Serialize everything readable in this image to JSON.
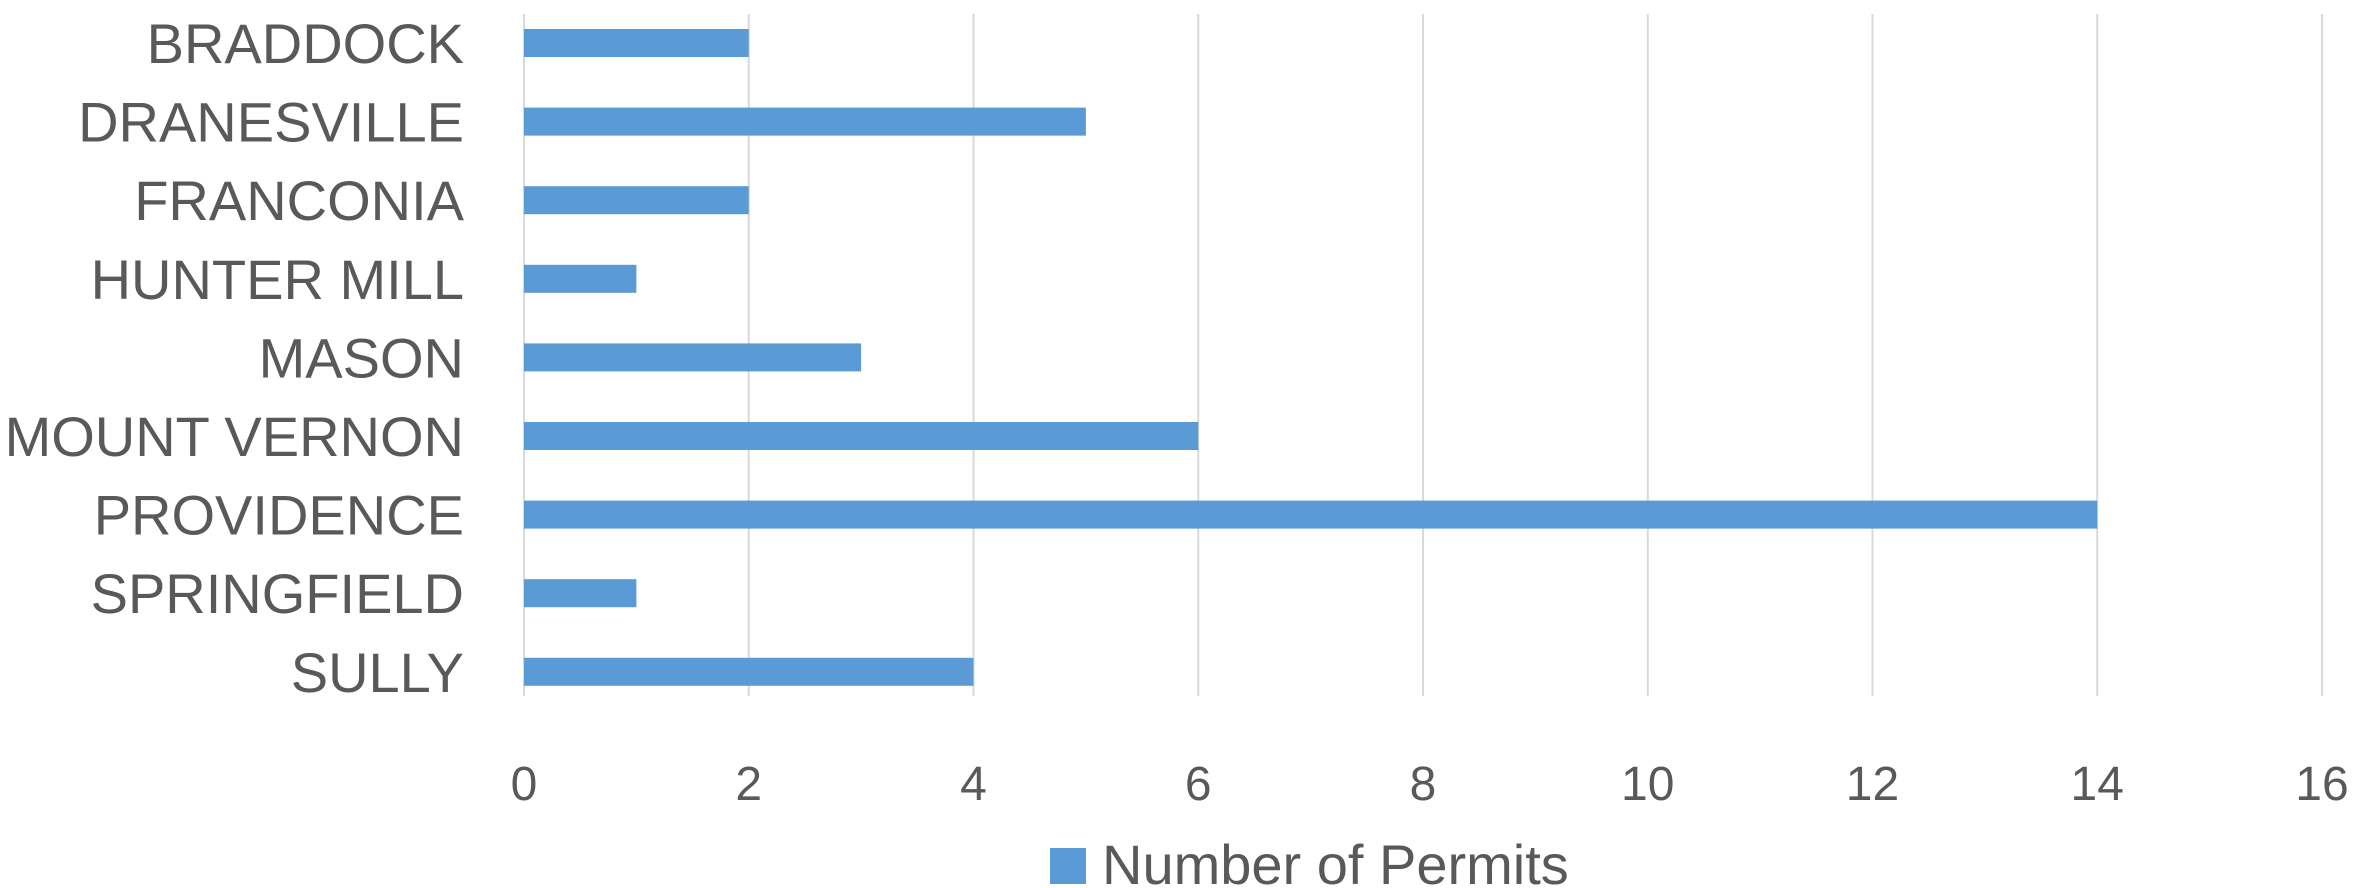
{
  "chart_data": {
    "type": "bar",
    "orientation": "horizontal",
    "categories": [
      "BRADDOCK",
      "DRANESVILLE",
      "FRANCONIA",
      "HUNTER MILL",
      "MASON",
      "MOUNT VERNON",
      "PROVIDENCE",
      "SPRINGFIELD",
      "SULLY"
    ],
    "series": [
      {
        "name": "Number of Permits",
        "values": [
          2,
          5,
          2,
          1,
          3,
          6,
          14,
          1,
          4
        ],
        "color": "#5b9bd5"
      }
    ],
    "xlim": [
      0,
      16
    ],
    "x_ticks": [
      "0",
      "2",
      "4",
      "6",
      "8",
      "10",
      "12",
      "14",
      "16"
    ],
    "title": "",
    "xlabel": "",
    "ylabel": "",
    "grid": true,
    "legend_position": "bottom"
  }
}
